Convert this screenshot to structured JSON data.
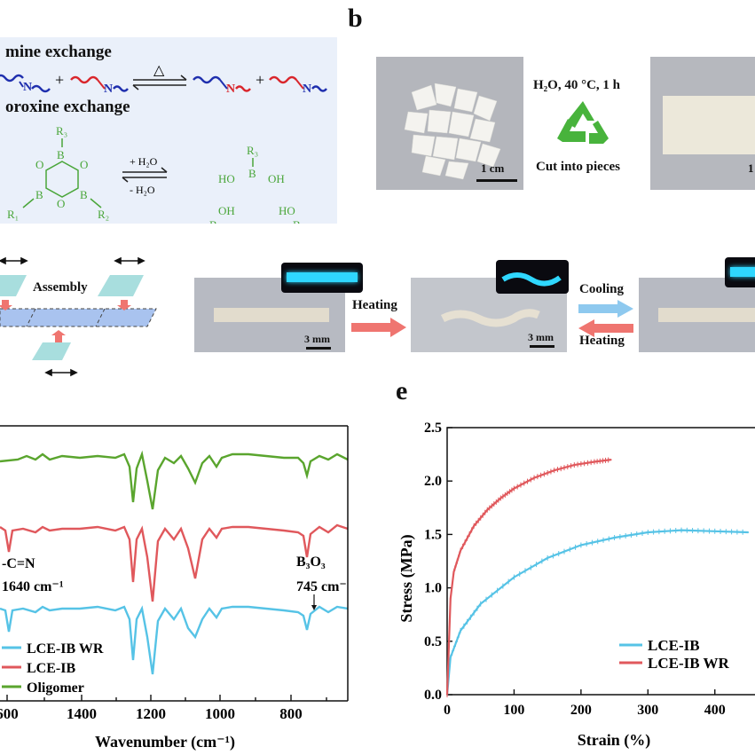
{
  "panel_labels": {
    "b": "b",
    "e": "e"
  },
  "panel_a": {
    "imine_title": "mine exchange",
    "boroxine_title": "oroxine exchange",
    "delta_symbol": "△",
    "plus": "+",
    "n_label": "N",
    "b_label": "B",
    "o_label": "O",
    "oh_label": "OH",
    "ho_label": "HO",
    "r1": "R₁",
    "r2": "R₂",
    "r3": "R₃",
    "forward_condition": "+ H₂O",
    "reverse_condition": "- H₂O",
    "colors": {
      "background": "#eaf0fa",
      "blue": "#1f2fae",
      "red": "#d9262c",
      "green": "#4aa63a"
    }
  },
  "panel_b": {
    "condition_line1": "H₂O, 40 °C, 1 h",
    "condition_line2": "Cut into pieces",
    "scale_left": "1 cm",
    "scale_right": "1",
    "recycle_icon_color": "#48b33c"
  },
  "panel_c": {
    "assembly_label": "Assembly",
    "heating_label": "Heating",
    "cooling_label": "Cooling",
    "heating_label_2": "Heating",
    "scale_1": "3 mm",
    "scale_2": "3 mm",
    "glow_color": "#2fd7ff"
  },
  "panel_d_ftir": {
    "x_axis_label": "Wavenumber (cm⁻¹)",
    "x_ticks": [
      "600",
      "1400",
      "1200",
      "1000",
      "800"
    ],
    "annotation_cn": "-C=N",
    "annotation_cn_wavenumber": "1640 cm⁻¹",
    "annotation_b3o3": "B₃O₃",
    "annotation_b3o3_wavenumber": "745 cm⁻",
    "legend": [
      "LCE-IB WR",
      "LCE-IB",
      "Oligomer"
    ],
    "colors": {
      "LCE-IB WR": "#56c3e6",
      "LCE-IB": "#e0585c",
      "Oligomer": "#5aa52e"
    }
  },
  "chart_data": {
    "type": "line",
    "xlabel": "Strain (%)",
    "ylabel": "Stress (MPa)",
    "xlim": [
      0,
      460
    ],
    "ylim": [
      0,
      2.5
    ],
    "x_ticks": [
      0,
      100,
      200,
      300,
      400
    ],
    "y_ticks": [
      0.0,
      0.5,
      1.0,
      1.5,
      2.0,
      2.5
    ],
    "legend_position": "bottom-right",
    "series": [
      {
        "name": "LCE-IB",
        "color": "#56c3e6",
        "x": [
          0,
          5,
          20,
          50,
          100,
          150,
          200,
          250,
          300,
          350,
          400,
          450
        ],
        "y": [
          0,
          0.35,
          0.6,
          0.85,
          1.1,
          1.28,
          1.4,
          1.47,
          1.52,
          1.54,
          1.53,
          1.52
        ]
      },
      {
        "name": "LCE-IB WR",
        "color": "#e0585c",
        "x": [
          0,
          5,
          10,
          20,
          40,
          60,
          80,
          100,
          130,
          160,
          190,
          220,
          245
        ],
        "y": [
          0,
          0.9,
          1.15,
          1.35,
          1.58,
          1.73,
          1.84,
          1.93,
          2.03,
          2.1,
          2.15,
          2.18,
          2.2
        ]
      }
    ]
  }
}
